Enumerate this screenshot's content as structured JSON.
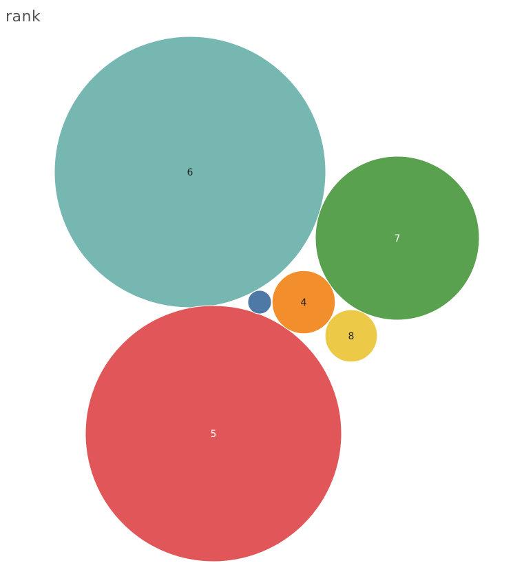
{
  "chart_data": {
    "type": "bubble",
    "title": "rank",
    "bubbles": [
      {
        "label": "6",
        "size": 1.0,
        "color": "#76b7b2",
        "label_color": "#222222"
      },
      {
        "label": "7",
        "size": 0.365,
        "color": "#59a14f",
        "label_color": "#ffffff"
      },
      {
        "label": "5",
        "size": 0.891,
        "color": "#e15759",
        "label_color": "#ffffff"
      },
      {
        "label": "4",
        "size": 0.054,
        "color": "#f28e2b",
        "label_color": "#222222"
      },
      {
        "label": "8",
        "size": 0.037,
        "color": "#edc948",
        "label_color": "#222222"
      },
      {
        "label": "",
        "size": 0.0075,
        "color": "#4e79a7",
        "label_color": "#ffffff"
      }
    ]
  }
}
